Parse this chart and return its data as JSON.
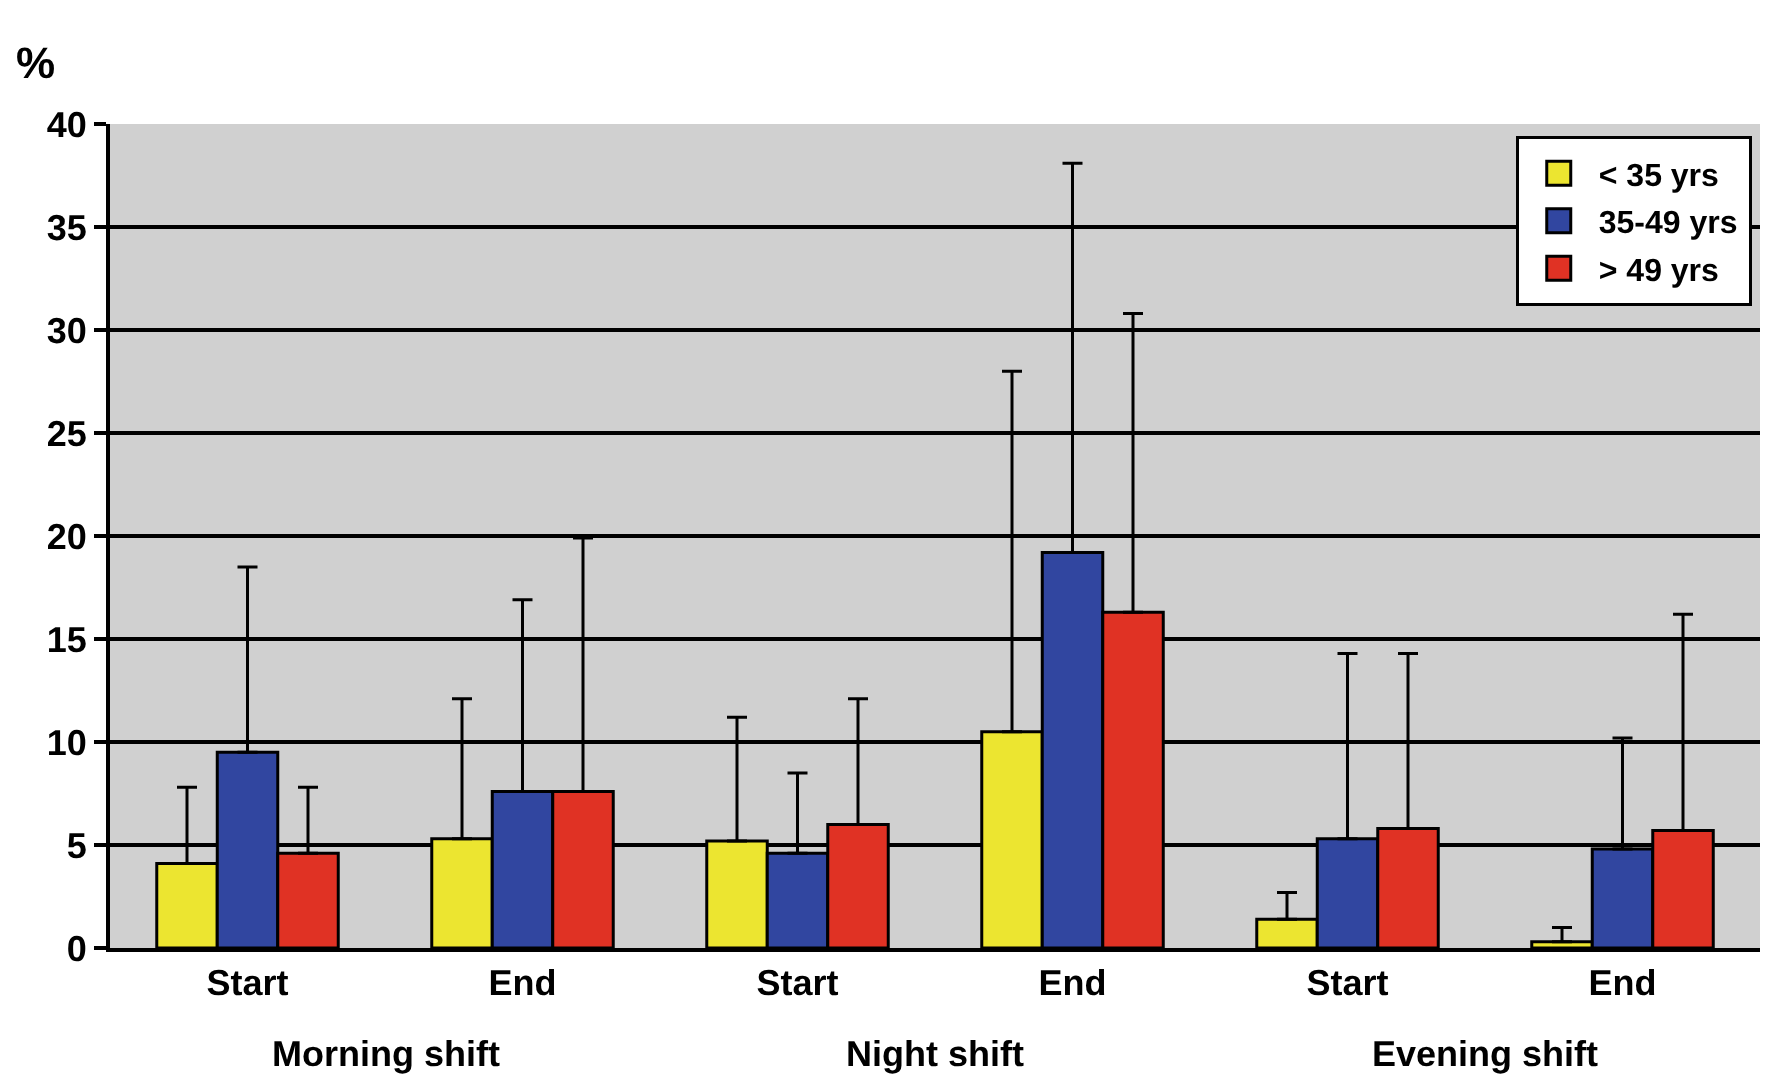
{
  "chart_data": {
    "type": "bar",
    "ylabel": "%",
    "categories": [
      "Start",
      "End",
      "Start",
      "End",
      "Start",
      "End"
    ],
    "series": [
      {
        "name": "< 35 yrs",
        "color": "#ece530",
        "values": [
          4.1,
          5.3,
          5.2,
          10.5,
          1.4,
          0.3
        ],
        "errors": [
          [
            4.1,
            7.8
          ],
          [
            5.3,
            12.1
          ],
          [
            5.2,
            11.2
          ],
          [
            10.5,
            28
          ],
          [
            1.4,
            2.7
          ],
          [
            0.3,
            1
          ]
        ]
      },
      {
        "name": "35-49 yrs",
        "color": "#3146a0",
        "values": [
          9.5,
          7.6,
          4.6,
          19.2,
          5.3,
          4.8
        ],
        "errors": [
          [
            9.5,
            18.5
          ],
          [
            7.6,
            16.9
          ],
          [
            4.6,
            8.5
          ],
          [
            19.2,
            38.1
          ],
          [
            5.3,
            14.3
          ],
          [
            4.8,
            10.2
          ]
        ]
      },
      {
        "name": "> 49 yrs",
        "color": "#e03224",
        "values": [
          4.6,
          7.6,
          6,
          16.3,
          5.8,
          5.7
        ],
        "errors": [
          [
            4.6,
            7.8
          ],
          [
            7.6,
            19.9
          ],
          [
            6,
            12.1
          ],
          [
            16.3,
            30.8
          ],
          [
            5.8,
            14.3
          ],
          [
            5.7,
            16.2
          ]
        ]
      }
    ],
    "annotations": [
      "Morning shift",
      "Night shift",
      "Evening shift"
    ],
    "ylim": [
      0,
      40
    ],
    "yticks": [
      0,
      5,
      10,
      15,
      20,
      25,
      30,
      35,
      40
    ],
    "grid": "y",
    "legend": "top right"
  }
}
